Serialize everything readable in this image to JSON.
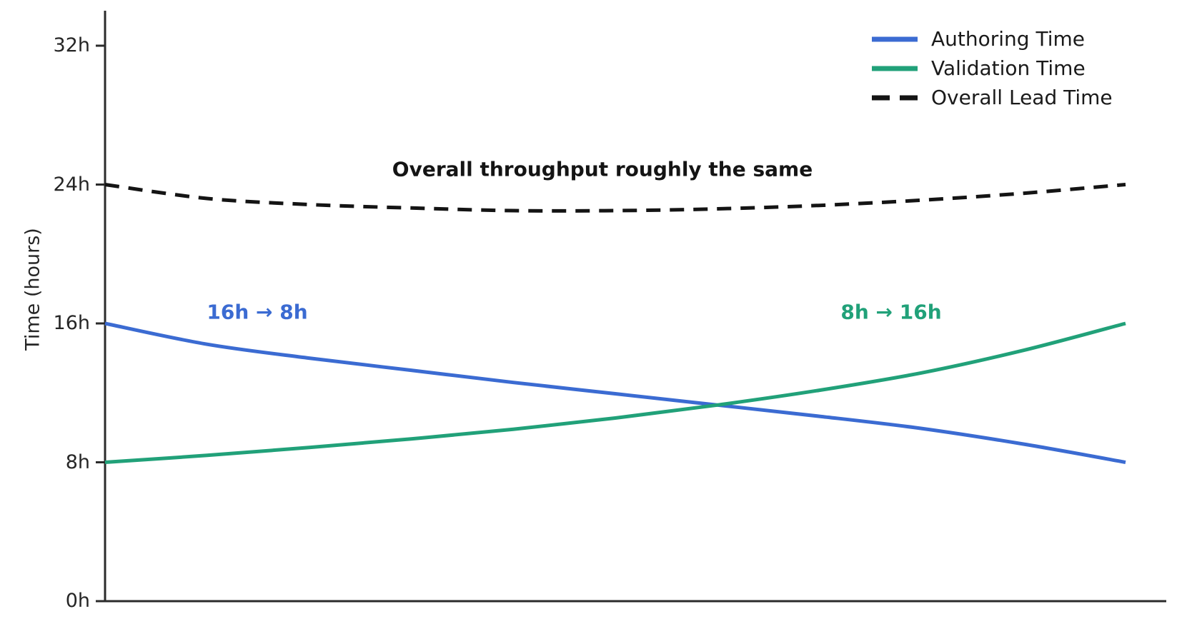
{
  "figure": {
    "background": "#ffffff",
    "axis_color": "#2b2b2b",
    "text_color": "#262626"
  },
  "chart_data": {
    "type": "line",
    "title": "",
    "xlabel": "",
    "ylabel": "Time (hours)",
    "ylim": [
      0,
      34
    ],
    "grid": false,
    "x_axis_ticks": "none",
    "yticks": [
      {
        "value": 0,
        "label": "0h"
      },
      {
        "value": 8,
        "label": "8h"
      },
      {
        "value": 16,
        "label": "16h"
      },
      {
        "value": 24,
        "label": "24h"
      },
      {
        "value": 32,
        "label": "32h"
      }
    ],
    "x": [
      0,
      0.1,
      0.2,
      0.3,
      0.4,
      0.5,
      0.6,
      0.7,
      0.8,
      0.9,
      1.0
    ],
    "series": [
      {
        "name": "Authoring Time",
        "color": "#3b6bd2",
        "style": "solid",
        "values": [
          16.0,
          14.8,
          14.0,
          13.3,
          12.6,
          11.95,
          11.3,
          10.65,
          9.95,
          9.05,
          8.0
        ]
      },
      {
        "name": "Validation Time",
        "color": "#21a179",
        "style": "solid",
        "values": [
          8.0,
          8.4,
          8.85,
          9.35,
          9.9,
          10.55,
          11.3,
          12.15,
          13.15,
          14.45,
          16.0
        ]
      },
      {
        "name": "Overall Lead Time",
        "color": "#141414",
        "style": "dashed",
        "values": [
          24.0,
          23.2,
          22.85,
          22.65,
          22.5,
          22.5,
          22.6,
          22.8,
          23.1,
          23.5,
          24.0
        ]
      }
    ],
    "legend": {
      "position": "upper right",
      "frame": false
    },
    "annotations": [
      {
        "text": "Overall throughput roughly the same",
        "color": "#141414",
        "bold": true
      },
      {
        "text": "16h → 8h",
        "color": "#3b6bd2",
        "bold": true
      },
      {
        "text": "8h → 16h",
        "color": "#21a179",
        "bold": true
      }
    ]
  }
}
